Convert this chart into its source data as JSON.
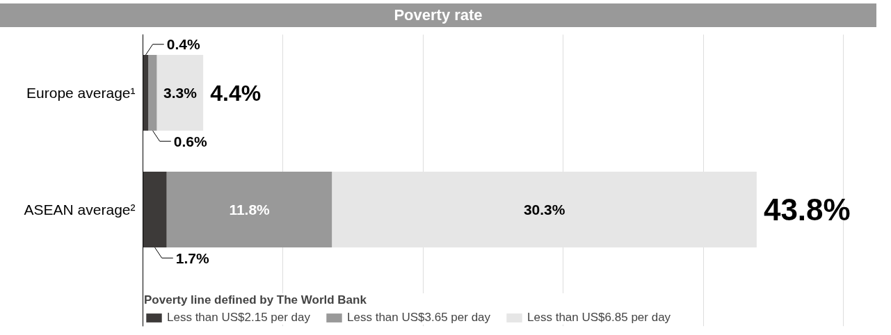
{
  "chart_data": {
    "type": "bar",
    "orientation": "horizontal",
    "stacked": true,
    "title": "Poverty rate",
    "categories": [
      "Europe average¹",
      "ASEAN average²"
    ],
    "series": [
      {
        "name": "Less than US$2.15 per day",
        "color": "#3d3a39",
        "values": [
          0.4,
          1.7
        ],
        "value_labels": [
          "0.4%",
          "1.7%"
        ]
      },
      {
        "name": "Less than US$3.65 per day",
        "color": "#999999",
        "values": [
          0.6,
          11.8
        ],
        "value_labels": [
          "0.6%",
          "11.8%"
        ]
      },
      {
        "name": "Less than US$6.85 per day",
        "color": "#e6e6e6",
        "values": [
          3.3,
          30.3
        ],
        "value_labels": [
          "3.3%",
          "30.3%"
        ]
      }
    ],
    "legend_title": "Poverty line defined by The World Bank",
    "legend": "bottom left",
    "totals": [
      "4.4%",
      "43.8%"
    ],
    "grid": "x",
    "tick_labels": "y"
  }
}
